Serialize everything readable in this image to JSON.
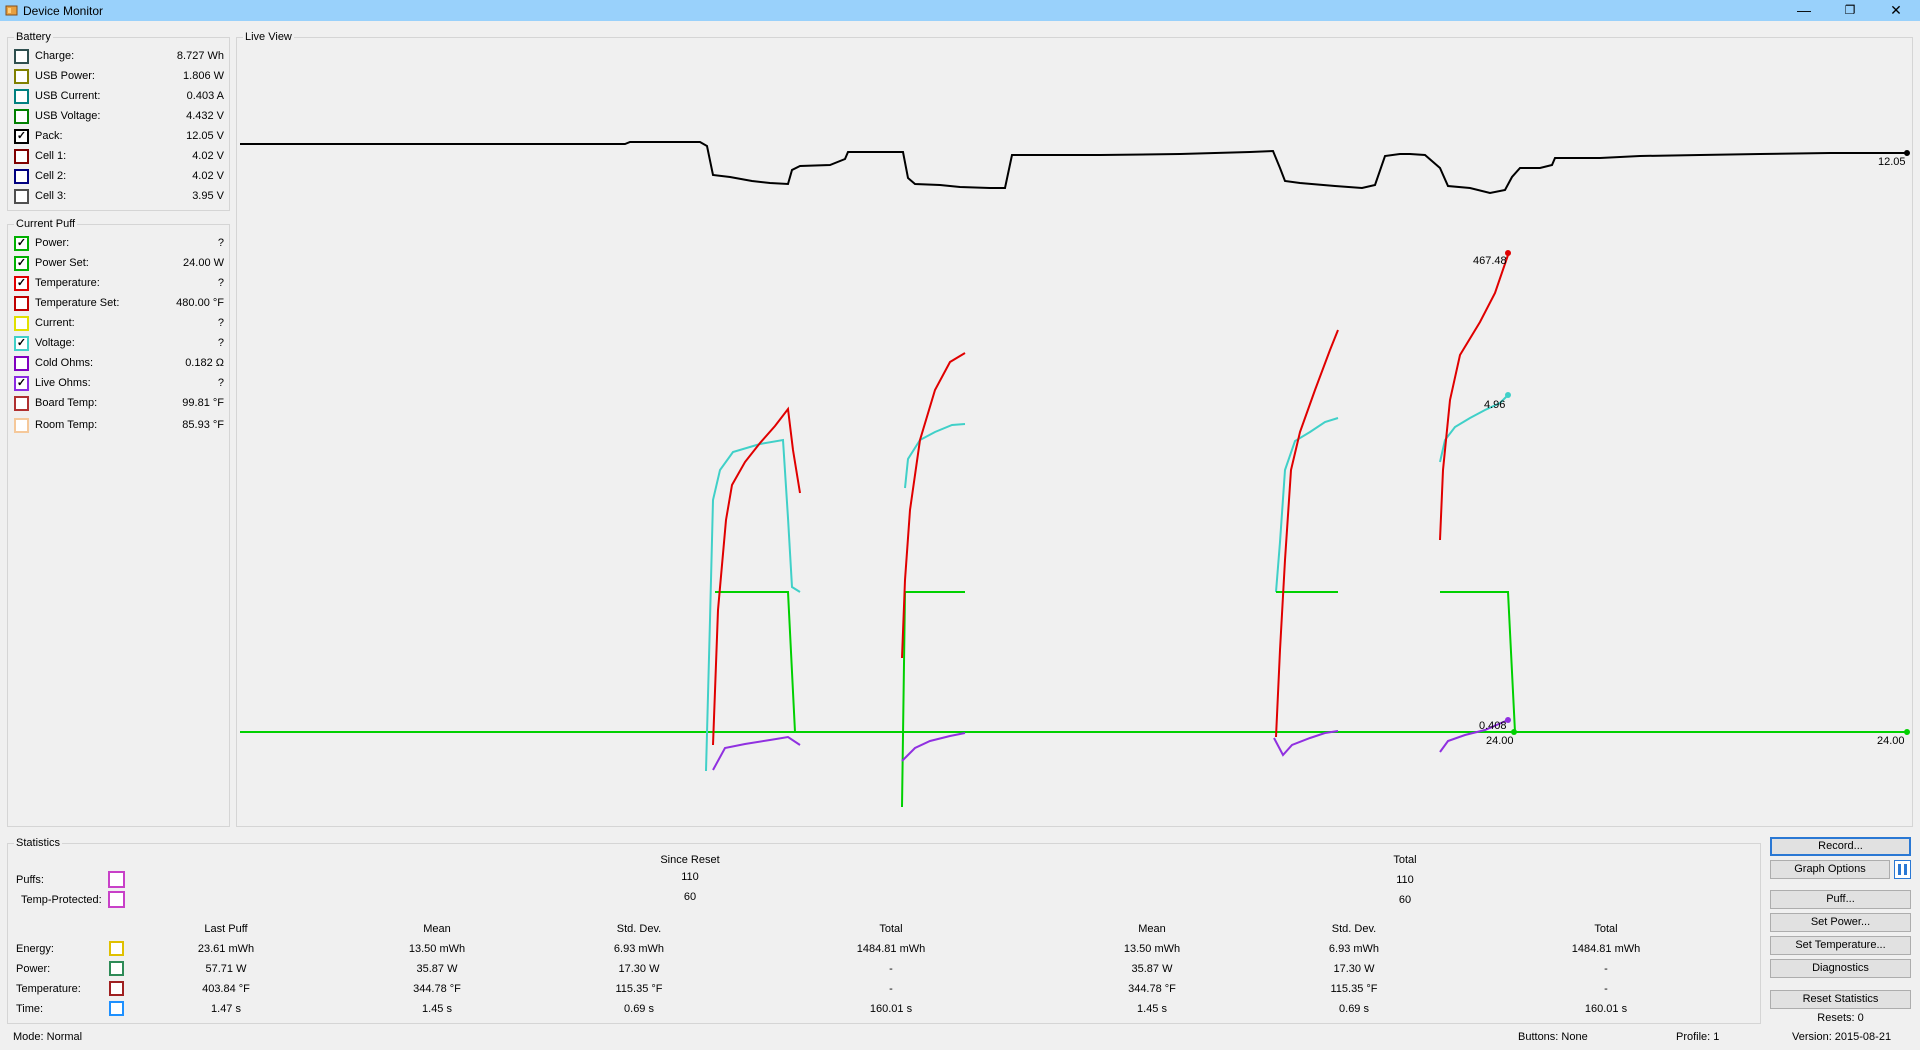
{
  "window": {
    "title": "Device Monitor",
    "controls": {
      "minimize": "—",
      "restore": "❐",
      "close": "✕"
    }
  },
  "battery": {
    "title": "Battery",
    "items": [
      {
        "label": "Charge:",
        "value": "8.727 Wh",
        "color": "#2f4f4f",
        "checked": false
      },
      {
        "label": "USB Power:",
        "value": "1.806 W",
        "color": "#808000",
        "checked": false
      },
      {
        "label": "USB Current:",
        "value": "0.403 A",
        "color": "#008080",
        "checked": false
      },
      {
        "label": "USB Voltage:",
        "value": "4.432 V",
        "color": "#008000",
        "checked": false
      },
      {
        "label": "Pack:",
        "value": "12.05 V",
        "color": "#000000",
        "checked": true
      },
      {
        "label": "Cell 1:",
        "value": "4.02 V",
        "color": "#800000",
        "checked": false
      },
      {
        "label": "Cell 2:",
        "value": "4.02 V",
        "color": "#000080",
        "checked": false
      },
      {
        "label": "Cell 3:",
        "value": "3.95 V",
        "color": "#505050",
        "checked": false
      }
    ]
  },
  "current_puff": {
    "title": "Current Puff",
    "items": [
      {
        "label": "Power:",
        "value": "?",
        "color": "#00b000",
        "checked": true
      },
      {
        "label": "Power Set:",
        "value": "24.00 W",
        "color": "#00b000",
        "checked": true
      },
      {
        "label": "Temperature:",
        "value": "?",
        "color": "#e00000",
        "checked": true
      },
      {
        "label": "Temperature Set:",
        "value": "480.00 °F",
        "color": "#c00000",
        "checked": false
      },
      {
        "label": "Current:",
        "value": "?",
        "color": "#e0e000",
        "checked": false
      },
      {
        "label": "Voltage:",
        "value": "?",
        "color": "#40d0c8",
        "checked": true
      },
      {
        "label": "Cold Ohms:",
        "value": "0.182 Ω",
        "color": "#8000c0",
        "checked": false
      },
      {
        "label": "Live Ohms:",
        "value": "?",
        "color": "#8a2be2",
        "checked": true
      },
      {
        "label": "Board Temp:",
        "value": "99.81 °F",
        "color": "#b03030",
        "checked": false
      },
      {
        "label": "Room Temp:",
        "value": "85.93 °F",
        "color": "#f5c89a",
        "checked": false
      }
    ]
  },
  "live_view": {
    "title": "Live View",
    "labels": {
      "pack_end": "12.05",
      "temp_peak": "467.48",
      "voltage_peak": "4.96",
      "ohms_end": "0.408",
      "power_set_mid": "24.00",
      "power_set_end": "24.00"
    },
    "colors": {
      "pack": "#000000",
      "temperature": "#e00000",
      "voltage": "#40d0c8",
      "power": "#00d000",
      "ohms": "#9030e0"
    }
  },
  "statistics": {
    "title": "Statistics",
    "since_reset_label": "Since Reset",
    "total_label": "Total",
    "puffs_label": "Puffs:",
    "temp_protected_label": "Temp-Protected:",
    "puffs_since": "110",
    "temp_protected_since": "60",
    "puffs_total": "110",
    "temp_protected_total": "60",
    "columns": [
      "Last Puff",
      "Mean",
      "Std. Dev.",
      "Total",
      "Mean",
      "Std. Dev.",
      "Total"
    ],
    "rows": [
      {
        "label": "Energy:",
        "color": "#e0c000",
        "values": [
          "23.61 mWh",
          "13.50 mWh",
          "6.93 mWh",
          "1484.81 mWh",
          "13.50 mWh",
          "6.93 mWh",
          "1484.81 mWh"
        ]
      },
      {
        "label": "Power:",
        "color": "#2e8b57",
        "values": [
          "57.71 W",
          "35.87 W",
          "17.30 W",
          "-",
          "35.87 W",
          "17.30 W",
          "-"
        ]
      },
      {
        "label": "Temperature:",
        "color": "#a02020",
        "values": [
          "403.84 °F",
          "344.78 °F",
          "115.35 °F",
          "-",
          "344.78 °F",
          "115.35 °F",
          "-"
        ]
      },
      {
        "label": "Time:",
        "color": "#1e90ff",
        "values": [
          "1.47 s",
          "1.45 s",
          "0.69 s",
          "160.01 s",
          "1.45 s",
          "0.69 s",
          "160.01 s"
        ]
      }
    ]
  },
  "buttons": {
    "record": "Record...",
    "graph_options": "Graph Options",
    "puff": "Puff...",
    "set_power": "Set Power...",
    "set_temperature": "Set Temperature...",
    "diagnostics": "Diagnostics",
    "reset_statistics": "Reset Statistics",
    "resets": "Resets: 0"
  },
  "status": {
    "mode": "Mode: Normal",
    "buttons": "Buttons: None",
    "profile": "Profile: 1",
    "version": "Version: 2015-08-21"
  }
}
